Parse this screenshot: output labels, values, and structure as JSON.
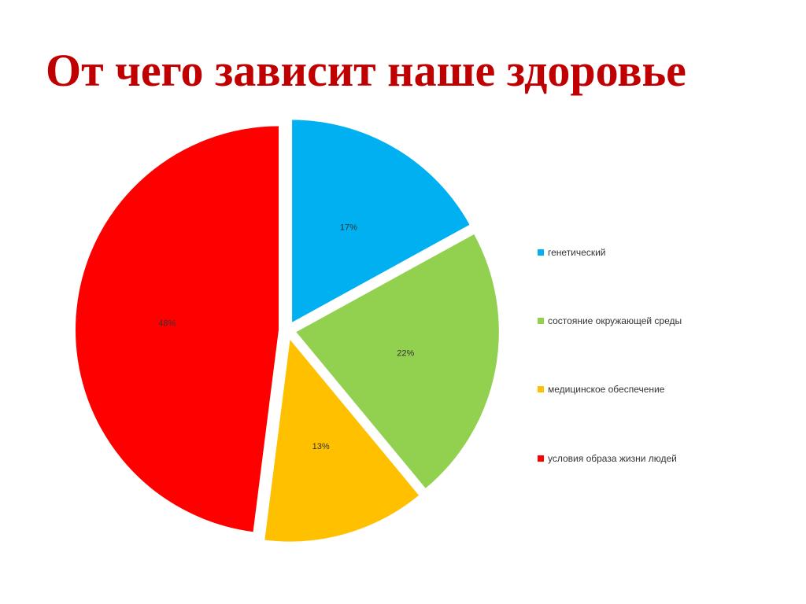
{
  "slide": {
    "title": "От чего зависит наше здоровье"
  },
  "chart_data": {
    "type": "pie",
    "start_angle_deg": 0,
    "direction": "clockwise",
    "exploded": true,
    "legend_position": "right",
    "slices": [
      {
        "name": "генетический",
        "value": 17,
        "label": "17%",
        "color": "#00b0f0"
      },
      {
        "name": "состояние окружающей среды",
        "value": 22,
        "label": "22%",
        "color": "#92d050"
      },
      {
        "name": "медицинское обеспечение",
        "value": 13,
        "label": "13%",
        "color": "#ffc000"
      },
      {
        "name": "условия образа жизни людей",
        "value": 48,
        "label": "48%",
        "color": "#ff0000"
      }
    ]
  }
}
